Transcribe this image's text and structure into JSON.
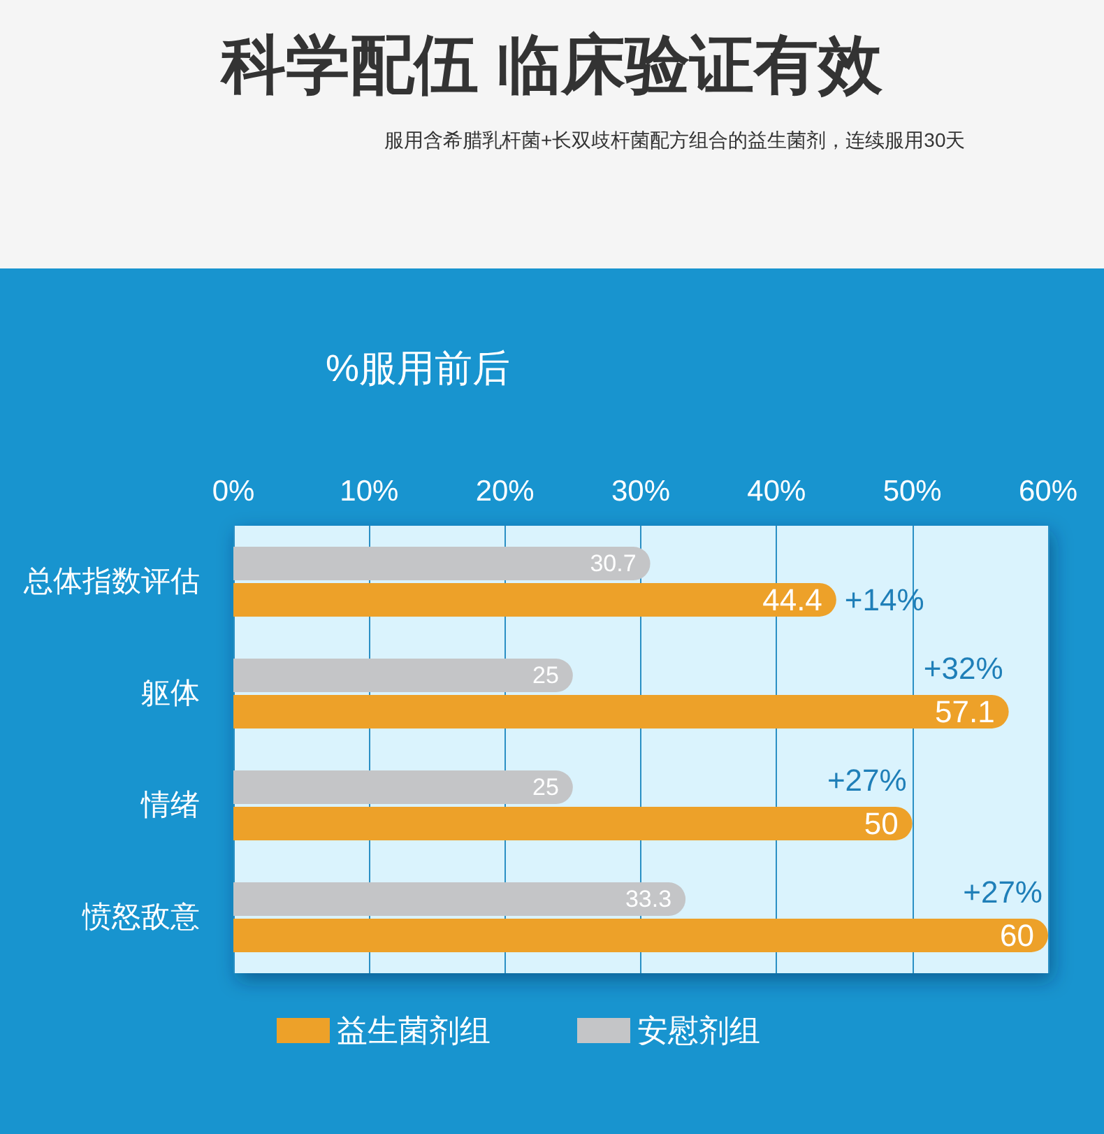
{
  "chart_data": {
    "type": "bar",
    "orientation": "horizontal",
    "title": "科学配伍 临床验证有效",
    "subtitle": "服用含希腊乳杆菌+长双歧杆菌配方组合的益生菌剂，连续服用30天",
    "xlabel": "%服用前后",
    "categories": [
      "总体指数评估",
      "躯体",
      "情绪",
      "愤怒敌意"
    ],
    "series": [
      {
        "name": "益生菌剂组",
        "color": "#eda129",
        "values": [
          44.4,
          57.1,
          50,
          60
        ]
      },
      {
        "name": "安慰剂组",
        "color": "#c4c5c7",
        "values": [
          30.7,
          25,
          25,
          33.3
        ]
      }
    ],
    "xlim": [
      0,
      60
    ],
    "xticks": [
      {
        "value": 0,
        "label": "0%"
      },
      {
        "value": 10,
        "label": "10%"
      },
      {
        "value": 20,
        "label": "20%"
      },
      {
        "value": 30,
        "label": "30%"
      },
      {
        "value": 40,
        "label": "40%"
      },
      {
        "value": 50,
        "label": "50%"
      },
      {
        "value": 60,
        "label": "60%"
      }
    ],
    "grid": "x",
    "legend": "bottom",
    "data_labels": true,
    "annotations": [
      "+14%",
      "+32%",
      "+27%",
      "+27%"
    ]
  }
}
